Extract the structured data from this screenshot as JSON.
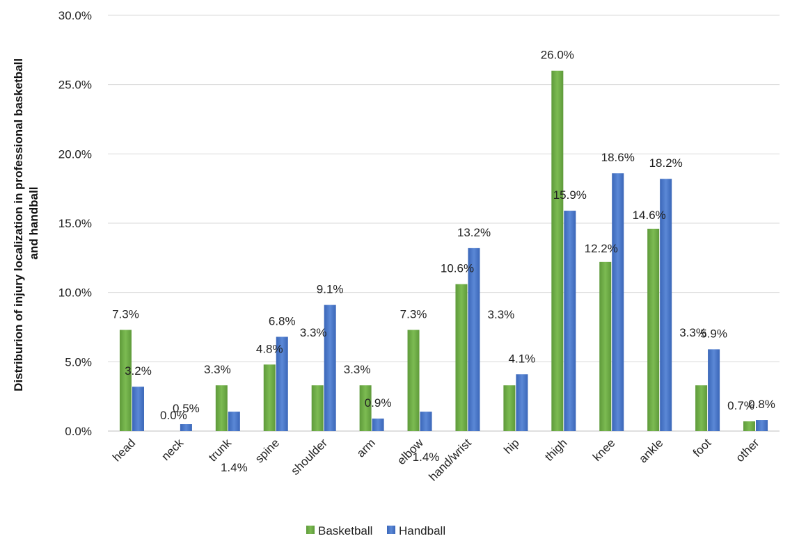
{
  "chart_data": {
    "type": "bar",
    "title": "",
    "xlabel": "",
    "ylabel": "Distriburion of injury localization in professional basketball and handball",
    "ylabel_lines": [
      "Distriburion of injury localization in professional basketball",
      "and handball"
    ],
    "ylim": [
      0,
      30
    ],
    "yticks": [
      0,
      5,
      10,
      15,
      20,
      25,
      30
    ],
    "ytick_labels": [
      "0.0%",
      "5.0%",
      "10.0%",
      "15.0%",
      "20.0%",
      "25.0%",
      "30.0%"
    ],
    "grid": true,
    "legend_position": "bottom",
    "categories": [
      "head",
      "neck",
      "trunk",
      "spine",
      "shoulder",
      "arm",
      "elbow",
      "hand/wrist",
      "hip",
      "thigh",
      "knee",
      "ankle",
      "foot",
      "other"
    ],
    "series": [
      {
        "name": "Basketball",
        "color": "#70ad47",
        "values": [
          7.3,
          0.0,
          3.3,
          4.8,
          3.3,
          3.3,
          7.3,
          10.6,
          3.3,
          26.0,
          12.2,
          14.6,
          3.3,
          0.7
        ],
        "labels": [
          "7.3%",
          "0.0%",
          "3.3%",
          "4.8%",
          "3.3%",
          "3.3%",
          "7.3%",
          "10.6%",
          "3.3%",
          "26.0%",
          "12.2%",
          "14.6%",
          "3.3%",
          "0.7%"
        ]
      },
      {
        "name": "Handball",
        "color": "#4472c4",
        "values": [
          3.2,
          0.5,
          1.4,
          6.8,
          9.1,
          0.9,
          1.4,
          13.2,
          4.1,
          15.9,
          18.6,
          18.2,
          5.9,
          0.8
        ],
        "labels": [
          "3.2%",
          "0.5%",
          "1.4%",
          "6.8%",
          "9.1%",
          "0.9%",
          "1.4%",
          "13.2%",
          "4.1%",
          "15.9%",
          "18.6%",
          "18.2%",
          "5.9%",
          "0.8%"
        ]
      }
    ]
  }
}
